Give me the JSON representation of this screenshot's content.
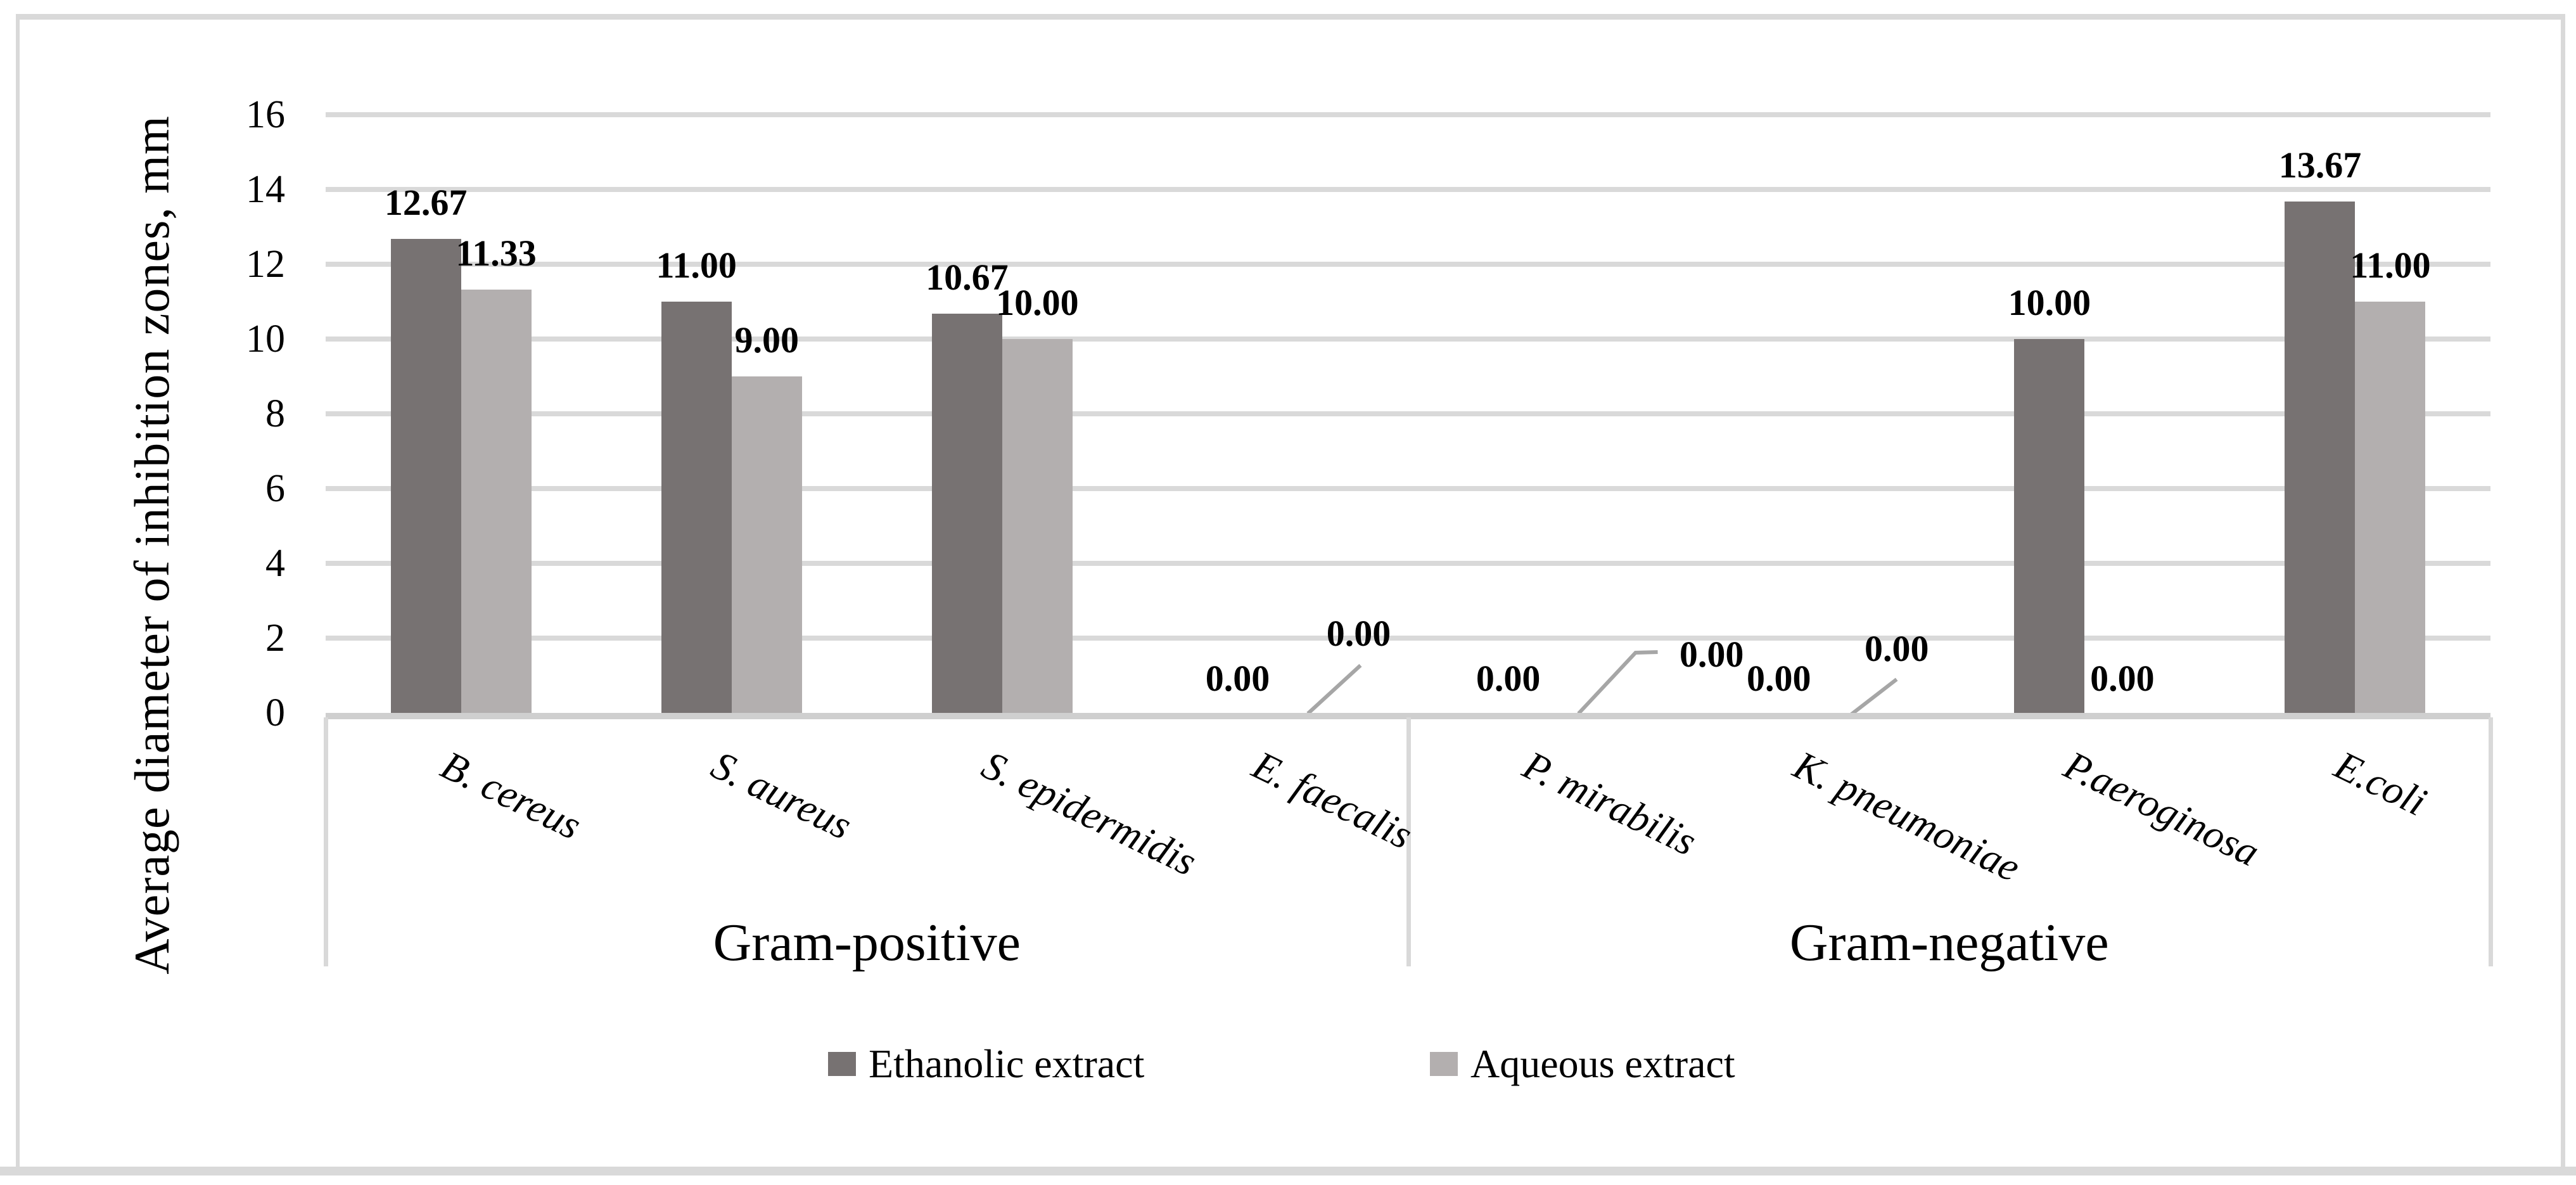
{
  "chart_data": {
    "type": "bar",
    "title": "",
    "ylabel": "Average diameter of inhibition zones, mm",
    "xlabel": "",
    "ylim": [
      0,
      16
    ],
    "ytick_step": 2,
    "yticks": [
      0,
      2,
      4,
      6,
      8,
      10,
      12,
      14,
      16
    ],
    "grid": true,
    "legend_position": "bottom-center",
    "categories": [
      "B. cereus",
      "S. aureus",
      "S. epidermidis",
      "E. faecalis",
      "P. mirabilis",
      "K. pneumoniae",
      "P.aeroginosa",
      "E.coli"
    ],
    "groups": [
      {
        "label": "Gram-positive",
        "span": [
          0,
          3
        ]
      },
      {
        "label": "Gram-negative",
        "span": [
          4,
          7
        ]
      }
    ],
    "series": [
      {
        "name": "Ethanolic extract",
        "color": "#777272",
        "values": [
          12.67,
          11.0,
          10.67,
          0.0,
          0.0,
          0.0,
          10.0,
          13.67
        ]
      },
      {
        "name": "Aqueous extract",
        "color": "#b3afaf",
        "values": [
          11.33,
          9.0,
          10.0,
          0.0,
          0.0,
          0.0,
          0.0,
          11.0
        ]
      }
    ],
    "data_label_format": "0.00",
    "zero_label_callouts": [
      "E. faecalis",
      "P. mirabilis",
      "K. pneumoniae"
    ]
  },
  "style": {
    "gridline_color": "#d9d9d9",
    "axis_line_color": "#cfcfcf",
    "separator_color": "#d9d9d9",
    "leader_line_color": "#a6a6a6",
    "frame_color": "#d9d9d9",
    "text_color": "#000000",
    "background": "#ffffff"
  }
}
